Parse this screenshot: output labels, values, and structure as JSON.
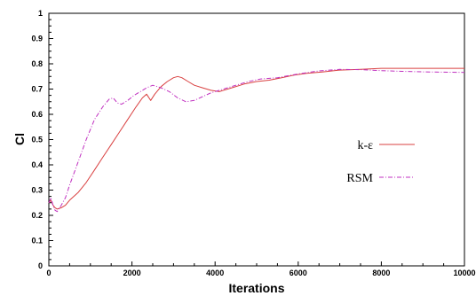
{
  "chart_data": {
    "type": "line",
    "title": "",
    "xlabel": "Iterations",
    "ylabel": "Cl",
    "xlim": [
      0,
      10000
    ],
    "ylim": [
      0,
      1
    ],
    "x_ticks": [
      0,
      2000,
      4000,
      6000,
      8000,
      10000
    ],
    "y_ticks": [
      0,
      0.1,
      0.2,
      0.3,
      0.4,
      0.5,
      0.6,
      0.7,
      0.8,
      0.9,
      1
    ],
    "grid": false,
    "legend_placement": "right",
    "series": [
      {
        "name": "k-ε",
        "color": "#d94040",
        "dash": "solid",
        "x": [
          0,
          50,
          100,
          150,
          200,
          300,
          400,
          500,
          700,
          900,
          1100,
          1300,
          1500,
          1700,
          1900,
          2100,
          2250,
          2350,
          2450,
          2550,
          2700,
          2850,
          3000,
          3100,
          3200,
          3350,
          3500,
          3700,
          3900,
          4100,
          4400,
          4700,
          5000,
          5300,
          5600,
          5900,
          6200,
          6600,
          7000,
          7500,
          8000,
          8500,
          9000,
          9500,
          10000
        ],
        "y": [
          0.25,
          0.26,
          0.24,
          0.23,
          0.225,
          0.23,
          0.24,
          0.26,
          0.29,
          0.33,
          0.38,
          0.43,
          0.48,
          0.53,
          0.58,
          0.63,
          0.665,
          0.68,
          0.655,
          0.68,
          0.71,
          0.73,
          0.745,
          0.75,
          0.745,
          0.73,
          0.715,
          0.705,
          0.695,
          0.69,
          0.705,
          0.72,
          0.73,
          0.735,
          0.745,
          0.755,
          0.762,
          0.768,
          0.775,
          0.778,
          0.782,
          0.782,
          0.782,
          0.782,
          0.782
        ]
      },
      {
        "name": "RSM",
        "color": "#c030c0",
        "dash": "dashdot",
        "x": [
          0,
          50,
          100,
          150,
          200,
          300,
          400,
          500,
          700,
          900,
          1100,
          1300,
          1450,
          1550,
          1650,
          1750,
          1900,
          2050,
          2200,
          2350,
          2500,
          2700,
          2900,
          3100,
          3300,
          3500,
          3700,
          3900,
          4200,
          4500,
          4800,
          5100,
          5500,
          6000,
          6500,
          7000,
          7500,
          8000,
          8500,
          9000,
          9500,
          10000
        ],
        "y": [
          0.25,
          0.27,
          0.24,
          0.22,
          0.215,
          0.24,
          0.27,
          0.32,
          0.41,
          0.5,
          0.58,
          0.63,
          0.66,
          0.665,
          0.645,
          0.64,
          0.655,
          0.675,
          0.69,
          0.705,
          0.715,
          0.705,
          0.69,
          0.665,
          0.65,
          0.655,
          0.67,
          0.685,
          0.7,
          0.715,
          0.73,
          0.74,
          0.745,
          0.76,
          0.772,
          0.778,
          0.777,
          0.773,
          0.77,
          0.768,
          0.767,
          0.766
        ]
      }
    ]
  }
}
